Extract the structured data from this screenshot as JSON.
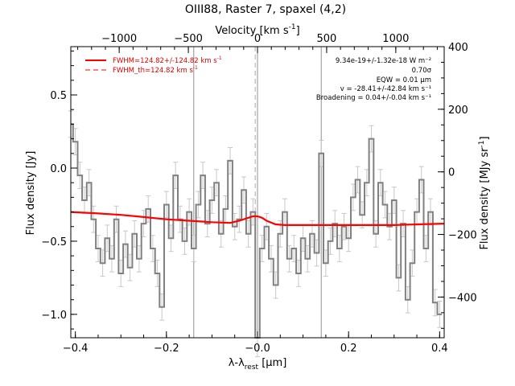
{
  "chart_data": {
    "type": "line",
    "title": "OIII88, Raster 7, spaxel (4,2)",
    "xlabel": "λ-λ",
    "xlabel_sub": "rest",
    "xlabel_unit": "[μm]",
    "ylabel": "Flux density [Jy]",
    "y2label": "Flux density [MJy sr",
    "y2label_sup": "-1",
    "y2label_end": "]",
    "top_axis_label": "Velocity [km s",
    "top_axis_label_sup": "-1",
    "top_axis_label_end": "]",
    "xlim": [
      -0.41,
      0.41
    ],
    "ylim": [
      -1.16,
      0.83
    ],
    "y2lim": [
      -530,
      400
    ],
    "top_xlim": [
      -1350,
      1350
    ],
    "x_ticks": [
      -0.4,
      -0.2,
      0.0,
      0.2,
      0.4
    ],
    "x_tick_labels": [
      "−0.4",
      "−0.2",
      "−0.0",
      "0.2",
      "0.4"
    ],
    "y_ticks": [
      -1.0,
      -0.5,
      0.0,
      0.5
    ],
    "y_tick_labels": [
      "−1.0",
      "−0.5",
      "0.0",
      "0.5"
    ],
    "y2_ticks": [
      -400,
      -200,
      0,
      200,
      400
    ],
    "y2_tick_labels": [
      "−400",
      "−200",
      "0",
      "200",
      "400"
    ],
    "top_ticks": [
      -1000,
      -500,
      0,
      500,
      1000
    ],
    "top_tick_labels": [
      "−1000",
      "−500",
      "0",
      "500",
      "1000"
    ],
    "vertical_lines": [
      -0.14,
      0.0,
      0.14
    ],
    "dashed_line": -0.005,
    "step_series": {
      "name": "",
      "color": "#808080",
      "x": [
        -0.41,
        -0.4,
        -0.39,
        -0.38,
        -0.37,
        -0.36,
        -0.35,
        -0.34,
        -0.33,
        -0.32,
        -0.31,
        -0.3,
        -0.29,
        -0.28,
        -0.27,
        -0.26,
        -0.25,
        -0.24,
        -0.23,
        -0.22,
        -0.21,
        -0.2,
        -0.19,
        -0.18,
        -0.17,
        -0.16,
        -0.15,
        -0.14,
        -0.13,
        -0.12,
        -0.11,
        -0.1,
        -0.09,
        -0.08,
        -0.07,
        -0.06,
        -0.05,
        -0.04,
        -0.03,
        -0.02,
        -0.01,
        0.0,
        0.01,
        0.02,
        0.03,
        0.04,
        0.05,
        0.06,
        0.07,
        0.08,
        0.09,
        0.1,
        0.11,
        0.12,
        0.13,
        0.14,
        0.15,
        0.16,
        0.17,
        0.18,
        0.19,
        0.2,
        0.21,
        0.22,
        0.23,
        0.24,
        0.25,
        0.26,
        0.27,
        0.28,
        0.29,
        0.3,
        0.31,
        0.32,
        0.33,
        0.34,
        0.35,
        0.36,
        0.37,
        0.38,
        0.39,
        0.4
      ],
      "y": [
        0.3,
        0.18,
        -0.05,
        -0.22,
        -0.1,
        -0.35,
        -0.55,
        -0.65,
        -0.48,
        -0.62,
        -0.35,
        -0.72,
        -0.52,
        -0.68,
        -0.45,
        -0.62,
        -0.38,
        -0.28,
        -0.55,
        -0.72,
        -0.95,
        -0.25,
        -0.48,
        -0.05,
        -0.35,
        -0.5,
        -0.3,
        -0.55,
        -0.25,
        -0.05,
        -0.38,
        -0.22,
        -0.1,
        -0.45,
        -0.28,
        0.05,
        -0.4,
        -0.35,
        -0.15,
        -0.45,
        -0.3,
        -1.2,
        -0.55,
        -0.4,
        -0.62,
        -0.8,
        -0.45,
        -0.3,
        -0.62,
        -0.55,
        -0.72,
        -0.48,
        -0.62,
        -0.45,
        -0.58,
        0.1,
        -0.65,
        -0.5,
        -0.38,
        -0.55,
        -0.4,
        -0.48,
        -0.2,
        -0.08,
        -0.32,
        -0.1,
        0.2,
        -0.45,
        -0.1,
        -0.25,
        -0.4,
        -0.22,
        -0.75,
        -0.38,
        -0.9,
        -0.65,
        -0.3,
        -0.08,
        -0.55,
        -0.3,
        -0.92,
        -1.0
      ]
    },
    "fit_series": {
      "name": "FWHM=124.82+/-124.82 km s⁻¹",
      "color": "#ff0000",
      "x": [
        -0.41,
        -0.35,
        -0.3,
        -0.25,
        -0.2,
        -0.15,
        -0.1,
        -0.06,
        -0.04,
        -0.02,
        -0.01,
        0.0,
        0.01,
        0.02,
        0.04,
        0.06,
        0.1,
        0.15,
        0.2,
        0.25,
        0.3,
        0.35,
        0.41
      ],
      "y": [
        -0.3,
        -0.31,
        -0.32,
        -0.335,
        -0.35,
        -0.36,
        -0.37,
        -0.375,
        -0.36,
        -0.34,
        -0.33,
        -0.33,
        -0.34,
        -0.36,
        -0.385,
        -0.39,
        -0.39,
        -0.39,
        -0.39,
        -0.39,
        -0.39,
        -0.385,
        -0.38
      ]
    },
    "legend": [
      {
        "label": "FWHM=124.82+/-124.82 km s",
        "sup": "-1",
        "style": "solid",
        "color": "#ff0000"
      },
      {
        "label": "FWHM_th=124.82 km s",
        "sup": "-1",
        "style": "dashed",
        "color": "#ff0000"
      }
    ],
    "legend_position": "top-left",
    "annotations": [
      "9.34e-19+/-1.32e-18 W m⁻²",
      "0.70σ",
      "EQW = 0.01 μm",
      "v = -28.41+/-42.84 km s⁻¹",
      "Broadening = 0.04+/-0.04 km s⁻¹"
    ],
    "annotation_position": "top-right"
  }
}
